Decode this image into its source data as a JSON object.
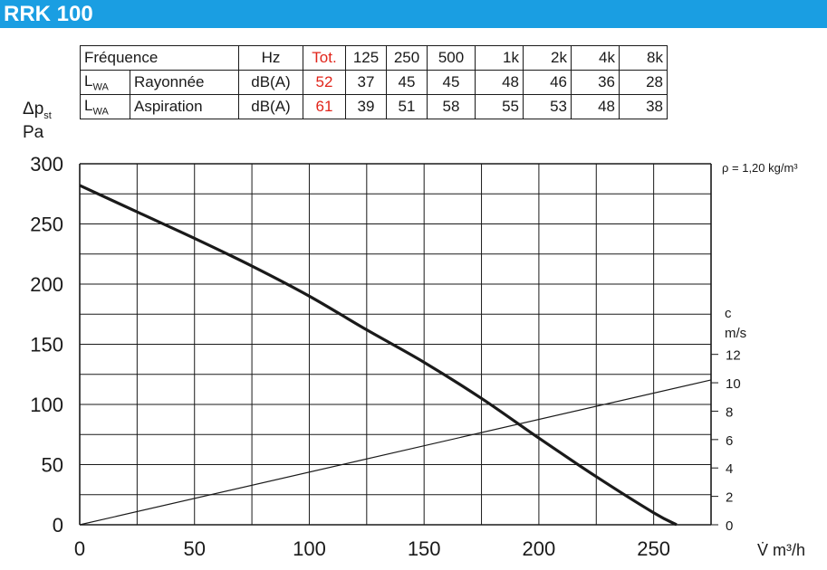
{
  "header": {
    "title": "RRK 100",
    "color": "#1a9ee2"
  },
  "table": {
    "freq_label": "Fréquence",
    "unit_hz": "Hz",
    "total_label": "Tot.",
    "bands": [
      "125",
      "250",
      "500",
      "1k",
      "2k",
      "4k",
      "8k"
    ],
    "lwa_symbol": "L",
    "lwa_sub": "WA",
    "unit_db": "dB(A)",
    "rows": [
      {
        "label": "Rayonnée",
        "total": "52",
        "values": [
          "37",
          "45",
          "45",
          "48",
          "46",
          "36",
          "28"
        ]
      },
      {
        "label": "Aspiration",
        "total": "61",
        "values": [
          "39",
          "51",
          "58",
          "55",
          "53",
          "48",
          "38"
        ]
      }
    ],
    "highlight_color": "#e1251b"
  },
  "chart_data": {
    "type": "line",
    "title": "",
    "ylabel_symbol": "Δp",
    "ylabel_sub": "st",
    "ylabel_unit": "Pa",
    "xlabel": "V̇ m³/h",
    "density_note": "ρ = 1,20 kg/m³",
    "xlim": [
      0,
      275
    ],
    "ylim": [
      0,
      300
    ],
    "x_ticks": [
      0,
      50,
      100,
      150,
      200,
      250
    ],
    "y_ticks": [
      0,
      50,
      100,
      150,
      200,
      250,
      300
    ],
    "grid": true,
    "right_axis": {
      "label": "c",
      "unit": "m/s",
      "ticks": [
        0,
        2,
        4,
        6,
        8,
        10,
        12
      ],
      "pa_per_unit": 11.8
    },
    "series": [
      {
        "role": "fan-curve",
        "x": [
          0,
          25,
          50,
          75,
          100,
          125,
          150,
          175,
          200,
          225,
          250,
          260
        ],
        "y": [
          282,
          260,
          238,
          215,
          190,
          162,
          135,
          105,
          72,
          40,
          10,
          0
        ]
      },
      {
        "role": "velocity-line",
        "x": [
          0,
          275
        ],
        "y": [
          0,
          10.2
        ]
      }
    ]
  }
}
